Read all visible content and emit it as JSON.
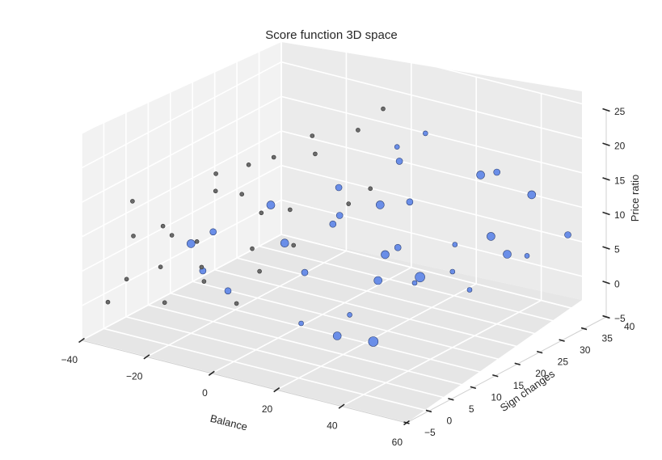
{
  "chart_data": {
    "type": "scatter",
    "title": "Score function 3D space",
    "xlabel": "Balance",
    "ylabel": "Sign changes",
    "zlabel": "Price ratio",
    "xlim": [
      -40,
      60
    ],
    "ylim": [
      -5,
      40
    ],
    "zlim": [
      -5,
      25
    ],
    "x_ticks": [
      "−40",
      "−20",
      "0",
      "20",
      "40",
      "60"
    ],
    "y_ticks": [
      "−5",
      "0",
      "5",
      "10",
      "15",
      "20",
      "25",
      "30",
      "35",
      "40"
    ],
    "z_ticks": [
      "−5",
      "0",
      "5",
      "10",
      "15",
      "20",
      "25"
    ],
    "grid": true,
    "colors": {
      "series_a": "#6a8ee8",
      "series_b": "#6b6b6b",
      "pane": "#f2f2f2",
      "grid": "#ffffff"
    },
    "series": [
      {
        "points": [
          {
            "x": -20,
            "y": 5,
            "z": 8,
            "s": 5
          },
          {
            "x": -15,
            "y": 4,
            "z": 5,
            "s": 4
          },
          {
            "x": -10,
            "y": 6,
            "z": 2,
            "s": 4
          },
          {
            "x": 5,
            "y": 20,
            "z": 14,
            "s": 4
          },
          {
            "x": 20,
            "y": 25,
            "z": 12,
            "s": 4
          },
          {
            "x": 10,
            "y": 15,
            "z": 11,
            "s": 4
          },
          {
            "x": 22,
            "y": 18,
            "z": 7,
            "s": 5
          },
          {
            "x": 30,
            "y": 20,
            "z": 4,
            "s": 6
          },
          {
            "x": 28,
            "y": 12,
            "z": 6,
            "s": 5
          },
          {
            "x": 32,
            "y": 8,
            "z": -1,
            "s": 6
          },
          {
            "x": 25,
            "y": 5,
            "z": 0,
            "s": 5
          },
          {
            "x": 38,
            "y": 22,
            "z": 9,
            "s": 3
          },
          {
            "x": 42,
            "y": 10,
            "z": 8,
            "s": 3
          },
          {
            "x": 12,
            "y": 28,
            "z": 18,
            "s": 3
          },
          {
            "x": 18,
            "y": 30,
            "z": 20,
            "s": 3
          },
          {
            "x": 35,
            "y": 30,
            "z": 16,
            "s": 5
          },
          {
            "x": 40,
            "y": 30,
            "z": 17,
            "s": 4
          },
          {
            "x": 48,
            "y": 32,
            "z": 14,
            "s": 5
          },
          {
            "x": 45,
            "y": 25,
            "z": 10,
            "s": 5
          },
          {
            "x": 50,
            "y": 25,
            "z": 8,
            "s": 5
          },
          {
            "x": 52,
            "y": 28,
            "z": 7,
            "s": 3
          },
          {
            "x": 55,
            "y": 35,
            "z": 8,
            "s": 4
          },
          {
            "x": 15,
            "y": 22,
            "z": 12,
            "s": 5
          },
          {
            "x": 8,
            "y": 18,
            "z": 11,
            "s": 4
          },
          {
            "x": 2,
            "y": 10,
            "z": 9,
            "s": 5
          },
          {
            "x": -5,
            "y": 12,
            "z": 13,
            "s": 5
          },
          {
            "x": 10,
            "y": 30,
            "z": 15,
            "s": 4
          },
          {
            "x": -20,
            "y": 10,
            "z": 8,
            "s": 4
          },
          {
            "x": 30,
            "y": 15,
            "z": 10,
            "s": 4
          },
          {
            "x": 48,
            "y": 18,
            "z": 5,
            "s": 3
          },
          {
            "x": 22,
            "y": 10,
            "z": 1,
            "s": 3
          },
          {
            "x": 40,
            "y": 20,
            "z": 6,
            "s": 3
          },
          {
            "x": 15,
            "y": 5,
            "z": 8,
            "s": 4
          },
          {
            "x": 18,
            "y": 2,
            "z": 2,
            "s": 3
          }
        ]
      },
      {
        "points": [
          {
            "x": -38,
            "y": 5,
            "z": 12,
            "s": 2.5
          },
          {
            "x": -35,
            "y": 3,
            "z": 8,
            "s": 2.5
          },
          {
            "x": -33,
            "y": 0,
            "z": 3,
            "s": 2.5
          },
          {
            "x": -36,
            "y": -2,
            "z": 0,
            "s": 2.5
          },
          {
            "x": -30,
            "y": 8,
            "z": 7,
            "s": 2.5
          },
          {
            "x": -25,
            "y": 10,
            "z": 6,
            "s": 2.5
          },
          {
            "x": -22,
            "y": 12,
            "z": 13,
            "s": 2.5
          },
          {
            "x": -18,
            "y": 15,
            "z": 12,
            "s": 2.5
          },
          {
            "x": -28,
            "y": 4,
            "z": 4,
            "s": 2.5
          },
          {
            "x": -24,
            "y": 2,
            "z": 0,
            "s": 2.5
          },
          {
            "x": -20,
            "y": 18,
            "z": 15,
            "s": 2.5
          },
          {
            "x": -15,
            "y": 20,
            "z": 16,
            "s": 2.5
          },
          {
            "x": -10,
            "y": 25,
            "z": 18,
            "s": 2.5
          },
          {
            "x": -5,
            "y": 22,
            "z": 17,
            "s": 2.5
          },
          {
            "x": 0,
            "y": 28,
            "z": 19,
            "s": 2.5
          },
          {
            "x": 5,
            "y": 30,
            "z": 22,
            "s": 2.5
          },
          {
            "x": -12,
            "y": 15,
            "z": 10,
            "s": 2.5
          },
          {
            "x": -8,
            "y": 10,
            "z": 7,
            "s": 2.5
          },
          {
            "x": -3,
            "y": 8,
            "z": 5,
            "s": 2.5
          },
          {
            "x": 2,
            "y": 12,
            "z": 8,
            "s": 2.5
          },
          {
            "x": 8,
            "y": 20,
            "z": 12,
            "s": 2.5
          },
          {
            "x": -16,
            "y": 5,
            "z": 3,
            "s": 2.5
          },
          {
            "x": -14,
            "y": 3,
            "z": 6,
            "s": 2.5
          },
          {
            "x": -6,
            "y": 5,
            "z": 1,
            "s": 2.5
          },
          {
            "x": 12,
            "y": 22,
            "z": 14,
            "s": 2.5
          },
          {
            "x": -30,
            "y": 6,
            "z": 9,
            "s": 2.5
          },
          {
            "x": -26,
            "y": 15,
            "z": 14,
            "s": 2.5
          },
          {
            "x": -10,
            "y": 20,
            "z": 9,
            "s": 2.5
          }
        ]
      }
    ]
  }
}
